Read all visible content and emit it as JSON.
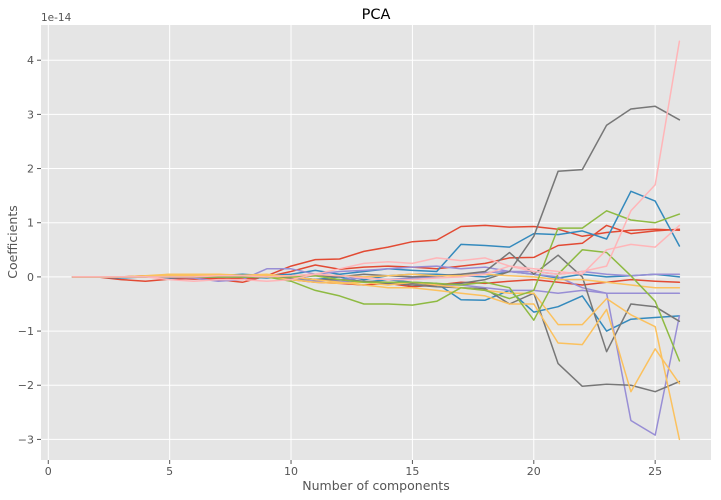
{
  "chart_data": {
    "type": "line",
    "title": "PCA",
    "xlabel": "Number of components",
    "ylabel": "Coefficients",
    "offset_label": "1e-14",
    "xlim": [
      -0.3,
      27.3
    ],
    "ylim": [
      -3.38,
      4.65
    ],
    "xticks": [
      0,
      5,
      10,
      15,
      20,
      25
    ],
    "yticks": [
      -3,
      -2,
      -1,
      0,
      1,
      2,
      3,
      4
    ],
    "grid": true,
    "legend": "none",
    "background": "#e5e5e5",
    "x": [
      1,
      2,
      3,
      4,
      5,
      6,
      7,
      8,
      9,
      10,
      11,
      12,
      13,
      14,
      15,
      16,
      17,
      18,
      19,
      20,
      21,
      22,
      23,
      24,
      25,
      26
    ],
    "series": [
      {
        "color": "#e24a33",
        "values": [
          0,
          0,
          -0.05,
          -0.08,
          -0.04,
          -0.03,
          -0.05,
          -0.1,
          0.02,
          0.2,
          0.32,
          0.33,
          0.47,
          0.55,
          0.65,
          0.68,
          0.93,
          0.95,
          0.92,
          0.93,
          0.88,
          0.75,
          0.82,
          0.86,
          0.88,
          0.86
        ]
      },
      {
        "color": "#e24a33",
        "values": [
          0,
          0,
          0,
          0.02,
          -0.02,
          -0.04,
          -0.03,
          -0.05,
          0,
          0.1,
          0.22,
          0.14,
          0.18,
          0.2,
          0.18,
          0.15,
          0.2,
          0.25,
          0.35,
          0.36,
          0.58,
          0.62,
          0.95,
          0.8,
          0.85,
          0.88
        ]
      },
      {
        "color": "#e24a33",
        "values": [
          0,
          0,
          0,
          0,
          0,
          -0.02,
          -0.05,
          -0.02,
          0,
          -0.05,
          -0.1,
          -0.12,
          -0.15,
          -0.12,
          -0.18,
          -0.15,
          -0.1,
          -0.12,
          -0.08,
          -0.05,
          -0.1,
          -0.15,
          -0.1,
          -0.05,
          -0.08,
          -0.1
        ]
      },
      {
        "color": "#348abd",
        "values": [
          0,
          0,
          0,
          0,
          0,
          0,
          0.02,
          0.05,
          0.02,
          0.05,
          0.12,
          0.05,
          0.1,
          0.15,
          0.12,
          0.1,
          0.6,
          0.58,
          0.55,
          0.8,
          0.78,
          0.85,
          0.7,
          1.58,
          1.4,
          0.57
        ]
      },
      {
        "color": "#348abd",
        "values": [
          0,
          0,
          -0.02,
          0,
          -0.02,
          0,
          0.02,
          0,
          -0.02,
          0.02,
          -0.05,
          0,
          -0.1,
          -0.05,
          -0.1,
          -0.12,
          -0.42,
          -0.43,
          -0.25,
          -0.65,
          -0.55,
          -0.35,
          -1.0,
          -0.78,
          -0.75,
          -0.72
        ]
      },
      {
        "color": "#348abd",
        "values": [
          0,
          0,
          0,
          0,
          0,
          0,
          0,
          0,
          0.02,
          0,
          0.02,
          0.03,
          -0.05,
          0.02,
          0.05,
          0.05,
          0.02,
          0,
          0.1,
          0.05,
          -0.02,
          0.05,
          0,
          0.02,
          0.05,
          0
        ]
      },
      {
        "color": "#988ed5",
        "values": [
          0,
          0,
          0,
          0,
          0,
          -0.02,
          -0.08,
          -0.05,
          0.15,
          0.15,
          0.05,
          0.1,
          0.12,
          0.15,
          0.18,
          0.2,
          0.15,
          0.18,
          0.1,
          0.05,
          0,
          -0.2,
          -0.3,
          -2.65,
          -2.92,
          -0.72
        ]
      },
      {
        "color": "#988ed5",
        "values": [
          0,
          0,
          0,
          0,
          0,
          0,
          0,
          0,
          0,
          -0.05,
          -0.08,
          -0.05,
          -0.02,
          -0.05,
          -0.02,
          0,
          0.05,
          0.08,
          0.1,
          0.1,
          0.05,
          0.1,
          0.05,
          0.02,
          0.05,
          0.05
        ]
      },
      {
        "color": "#988ed5",
        "values": [
          0,
          0,
          0,
          0,
          0,
          0,
          0,
          0,
          0,
          0,
          -0.05,
          -0.08,
          -0.1,
          -0.1,
          -0.1,
          -0.15,
          -0.15,
          -0.2,
          -0.25,
          -0.25,
          -0.3,
          -0.25,
          -0.3,
          -0.3,
          -0.3,
          -0.3
        ]
      },
      {
        "color": "#777777",
        "values": [
          0,
          0,
          0,
          0,
          0,
          0,
          0,
          0,
          0,
          0,
          -0.05,
          -0.05,
          -0.08,
          -0.1,
          -0.12,
          -0.15,
          -0.12,
          -0.05,
          0.1,
          0.75,
          1.95,
          1.98,
          2.8,
          3.1,
          3.15,
          2.9
        ]
      },
      {
        "color": "#777777",
        "values": [
          0,
          0,
          0,
          0,
          0,
          0,
          0,
          0,
          0,
          -0.02,
          -0.05,
          -0.05,
          -0.1,
          -0.12,
          -0.15,
          -0.18,
          -0.2,
          -0.22,
          -0.5,
          -0.3,
          -1.6,
          -2.02,
          -1.98,
          -2.0,
          -2.12,
          -1.93
        ]
      },
      {
        "color": "#777777",
        "values": [
          0,
          0,
          0,
          0,
          0,
          0,
          0,
          0,
          0,
          0,
          0.02,
          0,
          0.05,
          0.02,
          0,
          0.02,
          0.05,
          0.1,
          0.45,
          0.05,
          0.4,
          0,
          -1.38,
          -0.5,
          -0.55,
          -0.82
        ]
      },
      {
        "color": "#fbc15e",
        "values": [
          0,
          0,
          0,
          0.02,
          0.05,
          0.05,
          0.05,
          0.03,
          0.05,
          0,
          -0.05,
          -0.1,
          -0.15,
          -0.2,
          -0.2,
          -0.25,
          -0.3,
          -0.35,
          -0.5,
          -0.5,
          -1.22,
          -1.25,
          -0.6,
          -2.12,
          -1.33,
          -1.97
        ]
      },
      {
        "color": "#fbc15e",
        "values": [
          0,
          0,
          0,
          0,
          0.05,
          0.05,
          0.05,
          0,
          0,
          -0.05,
          -0.1,
          -0.12,
          -0.1,
          -0.15,
          -0.1,
          -0.15,
          -0.2,
          -0.25,
          -0.3,
          -0.3,
          -0.88,
          -0.88,
          -0.4,
          -0.7,
          -0.92,
          -3.0
        ]
      },
      {
        "color": "#fbc15e",
        "values": [
          0,
          0,
          0,
          0,
          0.02,
          0.02,
          0.02,
          0.02,
          0.02,
          0.02,
          0.05,
          0.02,
          0,
          0.02,
          0.05,
          0.02,
          0.02,
          0.05,
          0.02,
          0,
          -0.05,
          -0.05,
          -0.1,
          -0.15,
          -0.2,
          -0.2
        ]
      },
      {
        "color": "#8eba42",
        "values": [
          0,
          0,
          0,
          0,
          0,
          0,
          0,
          0,
          0,
          -0.08,
          -0.25,
          -0.35,
          -0.5,
          -0.5,
          -0.52,
          -0.45,
          -0.2,
          -0.25,
          -0.4,
          -0.25,
          0.9,
          0.9,
          1.22,
          1.05,
          1.0,
          1.16
        ]
      },
      {
        "color": "#8eba42",
        "values": [
          0,
          0,
          0,
          0,
          0,
          0,
          0,
          0,
          0,
          0,
          0.02,
          -0.05,
          -0.1,
          -0.1,
          -0.1,
          -0.12,
          -0.15,
          -0.1,
          -0.2,
          -0.8,
          0.05,
          0.5,
          0.45,
          0.02,
          -0.45,
          -1.55
        ]
      },
      {
        "color": "#ffb5b8",
        "values": [
          0,
          0,
          0,
          0,
          -0.05,
          -0.08,
          -0.05,
          -0.05,
          -0.08,
          -0.05,
          0.05,
          0.15,
          0.25,
          0.28,
          0.25,
          0.35,
          0.3,
          0.35,
          0.2,
          0.1,
          0.05,
          0.1,
          0.2,
          1.22,
          1.7,
          4.35
        ]
      },
      {
        "color": "#ffb5b8",
        "values": [
          0,
          0,
          0,
          0,
          0,
          0,
          0.02,
          0.02,
          0,
          0.02,
          0.05,
          0.02,
          -0.02,
          -0.05,
          -0.05,
          -0.02,
          0,
          0.05,
          0.2,
          0.15,
          0.1,
          0.05,
          0.5,
          0.6,
          0.55,
          0.95
        ]
      }
    ]
  }
}
